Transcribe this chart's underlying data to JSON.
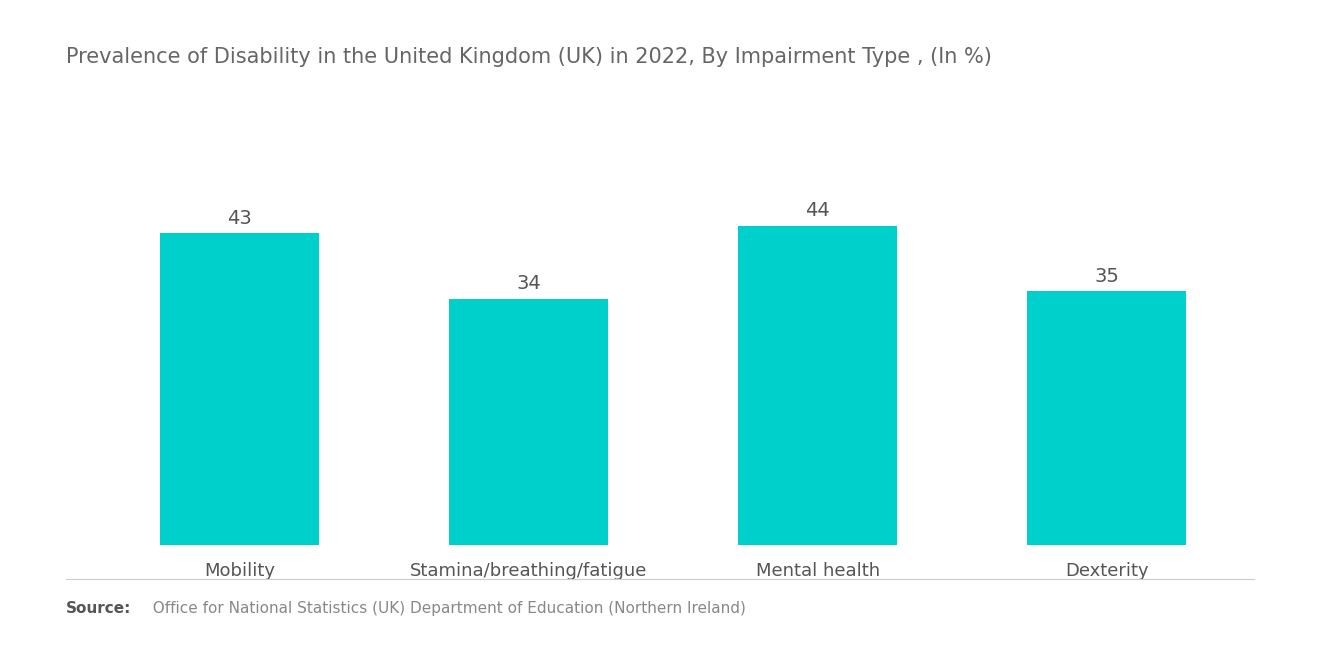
{
  "title": "Prevalence of Disability in the United Kingdom (UK) in 2022, By Impairment Type , (In %)",
  "categories": [
    "Mobility",
    "Stamina/breathing/fatigue",
    "Mental health",
    "Dexterity"
  ],
  "values": [
    43,
    34,
    44,
    35
  ],
  "bar_color": "#00D0CC",
  "value_color": "#555555",
  "label_color": "#555555",
  "title_color": "#666666",
  "background_color": "#ffffff",
  "source_label": "Source:",
  "source_rest": "  Office for National Statistics (UK) Department of Education (Northern Ireland)",
  "ylim": [
    0,
    55
  ],
  "bar_width": 0.55,
  "title_fontsize": 15,
  "label_fontsize": 13,
  "value_fontsize": 14,
  "source_fontsize": 11
}
